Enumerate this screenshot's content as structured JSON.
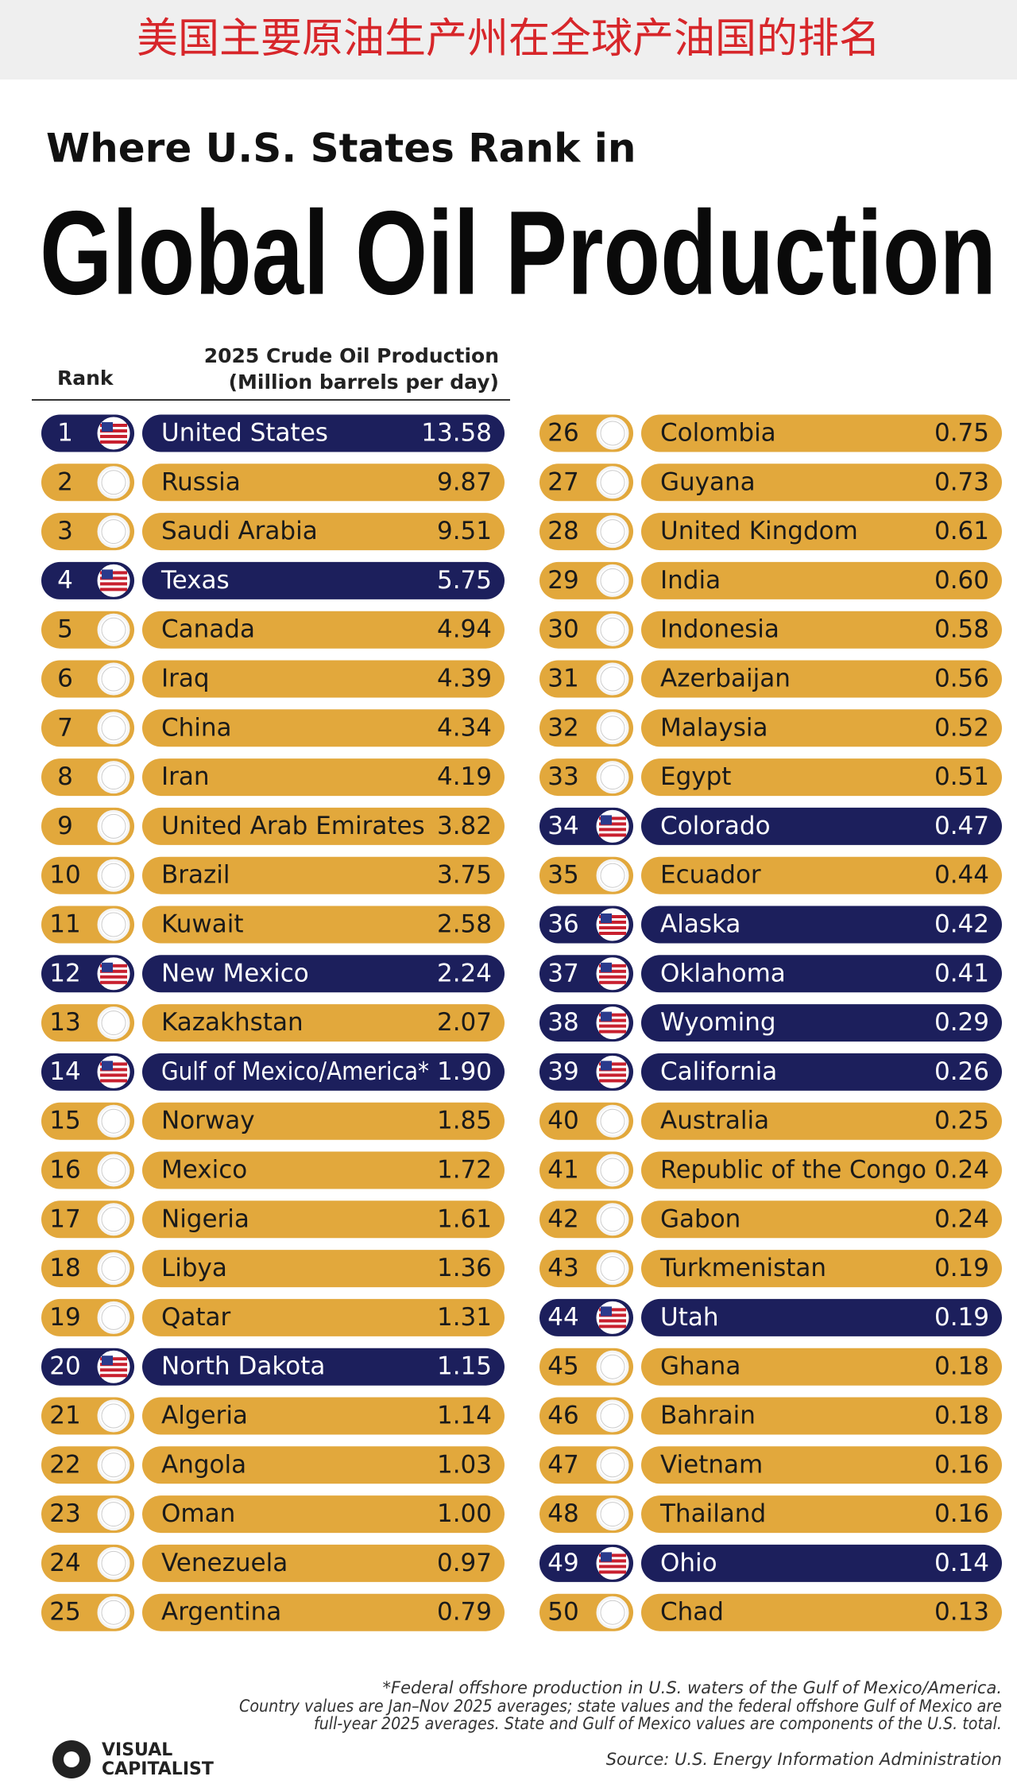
{
  "header": {
    "banner": "美国主要原油生产州在全球产油国的排名",
    "title_line1": "Where U.S. States Rank in",
    "title_line2": "Global Oil Production",
    "rank_label": "Rank",
    "value_label_line1": "2025 Crude Oil Production",
    "value_label_line2": "(Million barrels per day)"
  },
  "table": {
    "rows": [
      {
        "rank": 1,
        "name": "United States",
        "value": "13.58",
        "us": true
      },
      {
        "rank": 2,
        "name": "Russia",
        "value": "9.87",
        "us": false
      },
      {
        "rank": 3,
        "name": "Saudi Arabia",
        "value": "9.51",
        "us": false
      },
      {
        "rank": 4,
        "name": "Texas",
        "value": "5.75",
        "us": true
      },
      {
        "rank": 5,
        "name": "Canada",
        "value": "4.94",
        "us": false
      },
      {
        "rank": 6,
        "name": "Iraq",
        "value": "4.39",
        "us": false
      },
      {
        "rank": 7,
        "name": "China",
        "value": "4.34",
        "us": false
      },
      {
        "rank": 8,
        "name": "Iran",
        "value": "4.19",
        "us": false
      },
      {
        "rank": 9,
        "name": "United Arab Emirates",
        "value": "3.82",
        "us": false
      },
      {
        "rank": 10,
        "name": "Brazil",
        "value": "3.75",
        "us": false
      },
      {
        "rank": 11,
        "name": "Kuwait",
        "value": "2.58",
        "us": false
      },
      {
        "rank": 12,
        "name": "New Mexico",
        "value": "2.24",
        "us": true
      },
      {
        "rank": 13,
        "name": "Kazakhstan",
        "value": "2.07",
        "us": false
      },
      {
        "rank": 14,
        "name": "Gulf of Mexico/America*",
        "value": "1.90",
        "us": true
      },
      {
        "rank": 15,
        "name": "Norway",
        "value": "1.85",
        "us": false
      },
      {
        "rank": 16,
        "name": "Mexico",
        "value": "1.72",
        "us": false
      },
      {
        "rank": 17,
        "name": "Nigeria",
        "value": "1.61",
        "us": false
      },
      {
        "rank": 18,
        "name": "Libya",
        "value": "1.36",
        "us": false
      },
      {
        "rank": 19,
        "name": "Qatar",
        "value": "1.31",
        "us": false
      },
      {
        "rank": 20,
        "name": "North Dakota",
        "value": "1.15",
        "us": true
      },
      {
        "rank": 21,
        "name": "Algeria",
        "value": "1.14",
        "us": false
      },
      {
        "rank": 22,
        "name": "Angola",
        "value": "1.03",
        "us": false
      },
      {
        "rank": 23,
        "name": "Oman",
        "value": "1.00",
        "us": false
      },
      {
        "rank": 24,
        "name": "Venezuela",
        "value": "0.97",
        "us": false
      },
      {
        "rank": 25,
        "name": "Argentina",
        "value": "0.79",
        "us": false
      },
      {
        "rank": 26,
        "name": "Colombia",
        "value": "0.75",
        "us": false
      },
      {
        "rank": 27,
        "name": "Guyana",
        "value": "0.73",
        "us": false
      },
      {
        "rank": 28,
        "name": "United Kingdom",
        "value": "0.61",
        "us": false
      },
      {
        "rank": 29,
        "name": "India",
        "value": "0.60",
        "us": false
      },
      {
        "rank": 30,
        "name": "Indonesia",
        "value": "0.58",
        "us": false
      },
      {
        "rank": 31,
        "name": "Azerbaijan",
        "value": "0.56",
        "us": false
      },
      {
        "rank": 32,
        "name": "Malaysia",
        "value": "0.52",
        "us": false
      },
      {
        "rank": 33,
        "name": "Egypt",
        "value": "0.51",
        "us": false
      },
      {
        "rank": 34,
        "name": "Colorado",
        "value": "0.47",
        "us": true
      },
      {
        "rank": 35,
        "name": "Ecuador",
        "value": "0.44",
        "us": false
      },
      {
        "rank": 36,
        "name": "Alaska",
        "value": "0.42",
        "us": true
      },
      {
        "rank": 37,
        "name": "Oklahoma",
        "value": "0.41",
        "us": true
      },
      {
        "rank": 38,
        "name": "Wyoming",
        "value": "0.29",
        "us": true
      },
      {
        "rank": 39,
        "name": "California",
        "value": "0.26",
        "us": true
      },
      {
        "rank": 40,
        "name": "Australia",
        "value": "0.25",
        "us": false
      },
      {
        "rank": 41,
        "name": "Republic of the Congo",
        "value": "0.24",
        "us": false
      },
      {
        "rank": 42,
        "name": "Gabon",
        "value": "0.24",
        "us": false
      },
      {
        "rank": 43,
        "name": "Turkmenistan",
        "value": "0.19",
        "us": false
      },
      {
        "rank": 44,
        "name": "Utah",
        "value": "0.19",
        "us": true
      },
      {
        "rank": 45,
        "name": "Ghana",
        "value": "0.18",
        "us": false
      },
      {
        "rank": 46,
        "name": "Bahrain",
        "value": "0.18",
        "us": false
      },
      {
        "rank": 47,
        "name": "Vietnam",
        "value": "0.16",
        "us": false
      },
      {
        "rank": 48,
        "name": "Thailand",
        "value": "0.16",
        "us": false
      },
      {
        "rank": 49,
        "name": "Ohio",
        "value": "0.14",
        "us": true
      },
      {
        "rank": 50,
        "name": "Chad",
        "value": "0.13",
        "us": false
      }
    ]
  },
  "footer": {
    "note1": "*Federal offshore production in U.S. waters of the Gulf of Mexico/America.",
    "note2": "Country values are Jan–Nov 2025 averages; state values and the federal offshore Gulf of Mexico are",
    "note3": "full-year 2025 averages. State and Gulf of Mexico values are components of the U.S. total.",
    "source": "Source: U.S. Energy Information Administration",
    "logo_line1": "VISUAL",
    "logo_line2": "CAPITALIST"
  }
}
